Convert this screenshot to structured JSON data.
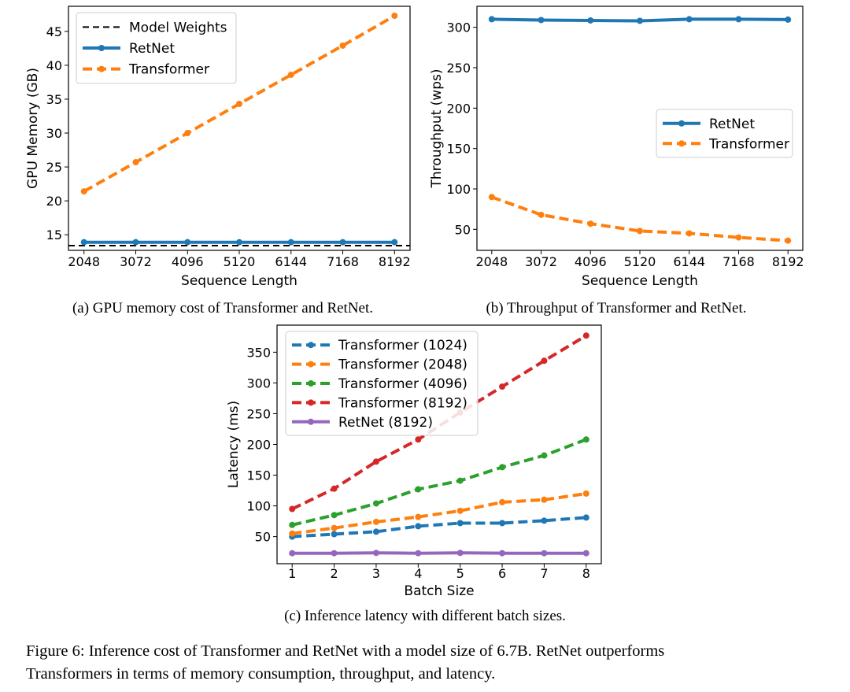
{
  "chart_data": [
    {
      "type": "line",
      "caption": "(a) GPU memory cost of Transformer and RetNet.",
      "xlabel": "Sequence Length",
      "ylabel": "GPU Memory (GB)",
      "x": [
        2048,
        3072,
        4096,
        5120,
        6144,
        7168,
        8192
      ],
      "xticks": [
        "2048",
        "3072",
        "4096",
        "5120",
        "6144",
        "7168",
        "8192"
      ],
      "yticks": [
        15,
        20,
        25,
        30,
        35,
        40,
        45
      ],
      "xlim": [
        1741,
        8499
      ],
      "ylim": [
        12.7,
        48.7
      ],
      "legend_position": "top-left",
      "hline": {
        "name": "Model Weights",
        "value": 13.4,
        "color": "#000000"
      },
      "series": [
        {
          "name": "RetNet",
          "values": [
            13.9,
            13.9,
            13.9,
            13.9,
            13.9,
            13.9,
            13.9
          ],
          "color": "#1f77b4",
          "dash": "solid"
        },
        {
          "name": "Transformer",
          "values": [
            21.4,
            25.7,
            30.0,
            34.3,
            38.6,
            42.9,
            47.3
          ],
          "color": "#ff7f0e",
          "dash": "dashed"
        }
      ]
    },
    {
      "type": "line",
      "caption": "(b) Throughput of Transformer and RetNet.",
      "xlabel": "Sequence Length",
      "ylabel": "Throughput (wps)",
      "x": [
        2048,
        3072,
        4096,
        5120,
        6144,
        7168,
        8192
      ],
      "xticks": [
        "2048",
        "3072",
        "4096",
        "5120",
        "6144",
        "7168",
        "8192"
      ],
      "yticks": [
        50,
        100,
        150,
        200,
        250,
        300
      ],
      "xlim": [
        1741,
        8499
      ],
      "ylim": [
        24,
        326
      ],
      "legend_position": "center-right",
      "series": [
        {
          "name": "RetNet",
          "values": [
            310,
            309,
            308.5,
            308,
            310,
            310,
            309.5
          ],
          "color": "#1f77b4",
          "dash": "solid"
        },
        {
          "name": "Transformer",
          "values": [
            90,
            68,
            57,
            48,
            45,
            40,
            36
          ],
          "color": "#ff7f0e",
          "dash": "dashed"
        }
      ]
    },
    {
      "type": "line",
      "caption": "(c) Inference latency with different batch sizes.",
      "xlabel": "Batch Size",
      "ylabel": "Latency (ms)",
      "x": [
        1,
        2,
        3,
        4,
        5,
        6,
        7,
        8
      ],
      "xticks": [
        "1",
        "2",
        "3",
        "4",
        "5",
        "6",
        "7",
        "8"
      ],
      "yticks": [
        50,
        100,
        150,
        200,
        250,
        300,
        350
      ],
      "xlim": [
        0.64,
        8.36
      ],
      "ylim": [
        6,
        394
      ],
      "legend_position": "top-left",
      "series": [
        {
          "name": "Transformer (1024)",
          "values": [
            50,
            54,
            58,
            67,
            72,
            72,
            76,
            81
          ],
          "color": "#1f77b4",
          "dash": "dashed"
        },
        {
          "name": "Transformer (2048)",
          "values": [
            55,
            64,
            74,
            82,
            92,
            106,
            110,
            120
          ],
          "color": "#ff7f0e",
          "dash": "dashed"
        },
        {
          "name": "Transformer (4096)",
          "values": [
            69,
            85,
            104,
            127,
            141,
            163,
            182,
            208
          ],
          "color": "#2ca02c",
          "dash": "dashed"
        },
        {
          "name": "Transformer (8192)",
          "values": [
            95,
            128,
            172,
            208,
            252,
            294,
            336,
            377
          ],
          "color": "#d62728",
          "dash": "dashed"
        },
        {
          "name": "RetNet (8192)",
          "values": [
            23,
            23,
            23.5,
            23,
            23.5,
            23,
            23,
            23
          ],
          "color": "#9467bd",
          "dash": "solid"
        }
      ]
    }
  ],
  "figure_caption": {
    "line1": "Figure 6: Inference cost of Transformer and RetNet with a model size of 6.7B. RetNet outperforms",
    "line2": "Transformers in terms of memory consumption, throughput, and latency."
  }
}
